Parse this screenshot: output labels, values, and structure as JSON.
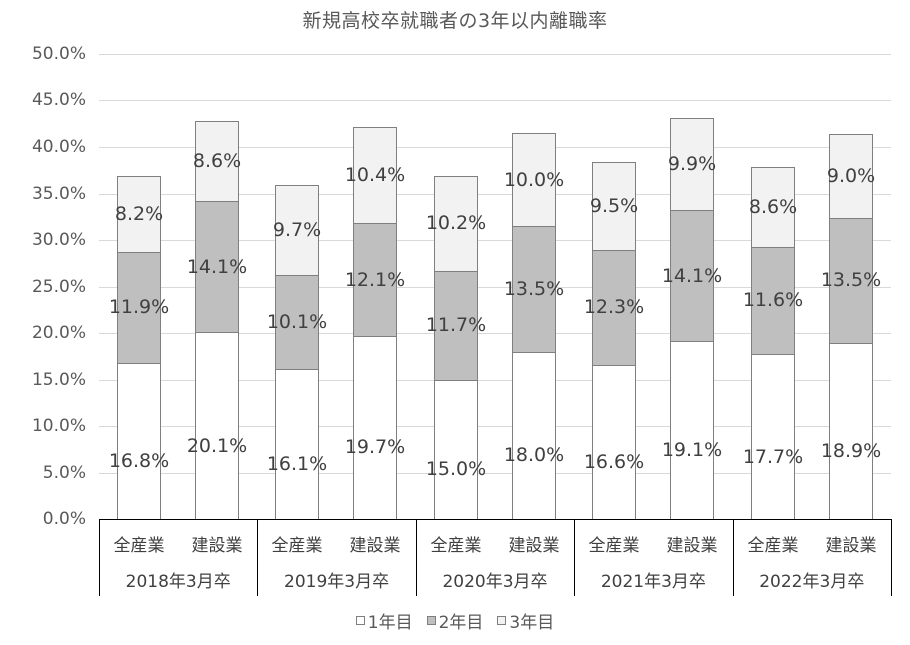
{
  "chart_data": {
    "type": "bar",
    "stacked": true,
    "title": "新規高校卒就職者の3年以内離職率",
    "xlabel": "",
    "ylabel": "",
    "ylim": [
      0,
      50
    ],
    "y_ticks": [
      "0.0%",
      "5.0%",
      "10.0%",
      "15.0%",
      "20.0%",
      "25.0%",
      "30.0%",
      "35.0%",
      "40.0%",
      "45.0%",
      "50.0%"
    ],
    "grid": true,
    "legend_position": "bottom",
    "groups": [
      "2018年3月卒",
      "2019年3月卒",
      "2020年3月卒",
      "2021年3月卒",
      "2022年3月卒"
    ],
    "subcategories": [
      "全産業",
      "建設業"
    ],
    "categories": [
      "2018年3月卒 全産業",
      "2018年3月卒 建設業",
      "2019年3月卒 全産業",
      "2019年3月卒 建設業",
      "2020年3月卒 全産業",
      "2020年3月卒 建設業",
      "2021年3月卒 全産業",
      "2021年3月卒 建設業",
      "2022年3月卒 全産業",
      "2022年3月卒 建設業"
    ],
    "series": [
      {
        "name": "1年目",
        "color": "#ffffff",
        "values": [
          16.8,
          20.1,
          16.1,
          19.7,
          15.0,
          18.0,
          16.6,
          19.1,
          17.7,
          18.9
        ],
        "labels": [
          "16.8%",
          "20.1%",
          "16.1%",
          "19.7%",
          "15.0%",
          "18.0%",
          "16.6%",
          "19.1%",
          "17.7%",
          "18.9%"
        ]
      },
      {
        "name": "2年目",
        "color": "#bfbfbf",
        "values": [
          11.9,
          14.1,
          10.1,
          12.1,
          11.7,
          13.5,
          12.3,
          14.1,
          11.6,
          13.5
        ],
        "labels": [
          "11.9%",
          "14.1%",
          "10.1%",
          "12.1%",
          "11.7%",
          "13.5%",
          "12.3%",
          "14.1%",
          "11.6%",
          "13.5%"
        ]
      },
      {
        "name": "3年目",
        "color": "#f2f2f2",
        "values": [
          8.2,
          8.6,
          9.7,
          10.4,
          10.2,
          10.0,
          9.5,
          9.9,
          8.6,
          9.0
        ],
        "labels": [
          "8.2%",
          "8.6%",
          "9.7%",
          "10.4%",
          "10.2%",
          "10.0%",
          "9.5%",
          "9.9%",
          "8.6%",
          "9.0%"
        ]
      }
    ]
  },
  "legend": {
    "items": [
      {
        "label": "1年目",
        "color": "#ffffff"
      },
      {
        "label": "2年目",
        "color": "#bfbfbf"
      },
      {
        "label": "3年目",
        "color": "#f2f2f2"
      }
    ]
  },
  "colors": {
    "gridline": "#d9d9d9",
    "bar_border": "#7f7f7f",
    "axis": "#000000",
    "text": "#595959"
  }
}
